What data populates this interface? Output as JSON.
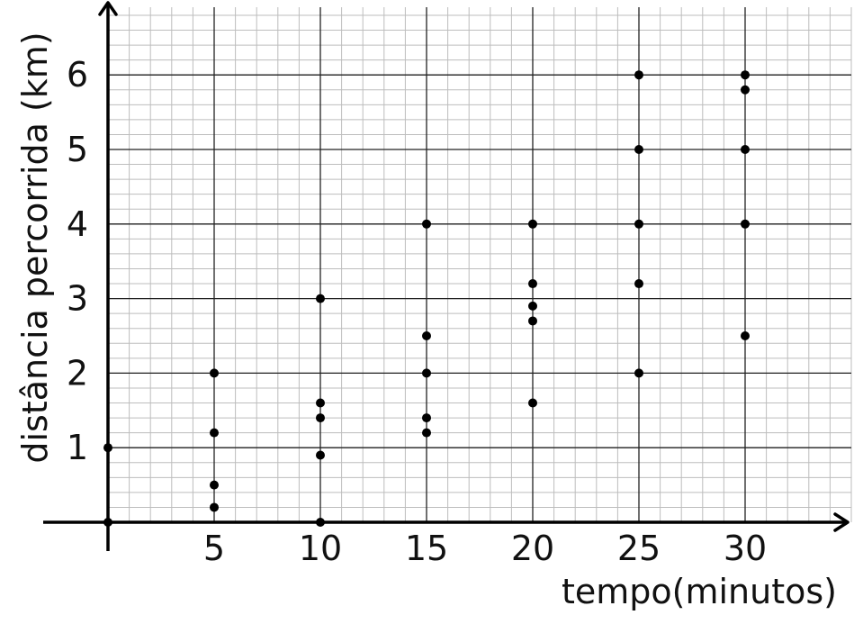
{
  "chart_data": {
    "type": "scatter",
    "title": "",
    "xlabel": "tempo(minutos)",
    "ylabel": "distância percorrida (km)",
    "xlim": [
      0,
      35
    ],
    "ylim": [
      0,
      7
    ],
    "x_ticks": [
      5,
      10,
      15,
      20,
      25,
      30
    ],
    "y_ticks": [
      1,
      2,
      3,
      4,
      5,
      6
    ],
    "grid": true,
    "series": [
      {
        "points": [
          {
            "x": 0,
            "y": 0
          },
          {
            "x": 0,
            "y": 1
          },
          {
            "x": 5,
            "y": 0.2
          },
          {
            "x": 5,
            "y": 0.5
          },
          {
            "x": 5,
            "y": 1.2
          },
          {
            "x": 5,
            "y": 2
          },
          {
            "x": 10,
            "y": 0
          },
          {
            "x": 10,
            "y": 0.9
          },
          {
            "x": 10,
            "y": 1.4
          },
          {
            "x": 10,
            "y": 1.6
          },
          {
            "x": 10,
            "y": 3
          },
          {
            "x": 15,
            "y": 1.2
          },
          {
            "x": 15,
            "y": 1.4
          },
          {
            "x": 15,
            "y": 2
          },
          {
            "x": 15,
            "y": 2.5
          },
          {
            "x": 15,
            "y": 4
          },
          {
            "x": 20,
            "y": 1.6
          },
          {
            "x": 20,
            "y": 2.7
          },
          {
            "x": 20,
            "y": 2.9
          },
          {
            "x": 20,
            "y": 3.2
          },
          {
            "x": 20,
            "y": 4
          },
          {
            "x": 25,
            "y": 2
          },
          {
            "x": 25,
            "y": 3.2
          },
          {
            "x": 25,
            "y": 4
          },
          {
            "x": 25,
            "y": 5
          },
          {
            "x": 25,
            "y": 6
          },
          {
            "x": 30,
            "y": 2.5
          },
          {
            "x": 30,
            "y": 4
          },
          {
            "x": 30,
            "y": 5
          },
          {
            "x": 30,
            "y": 5.8
          },
          {
            "x": 30,
            "y": 6
          }
        ]
      }
    ]
  }
}
